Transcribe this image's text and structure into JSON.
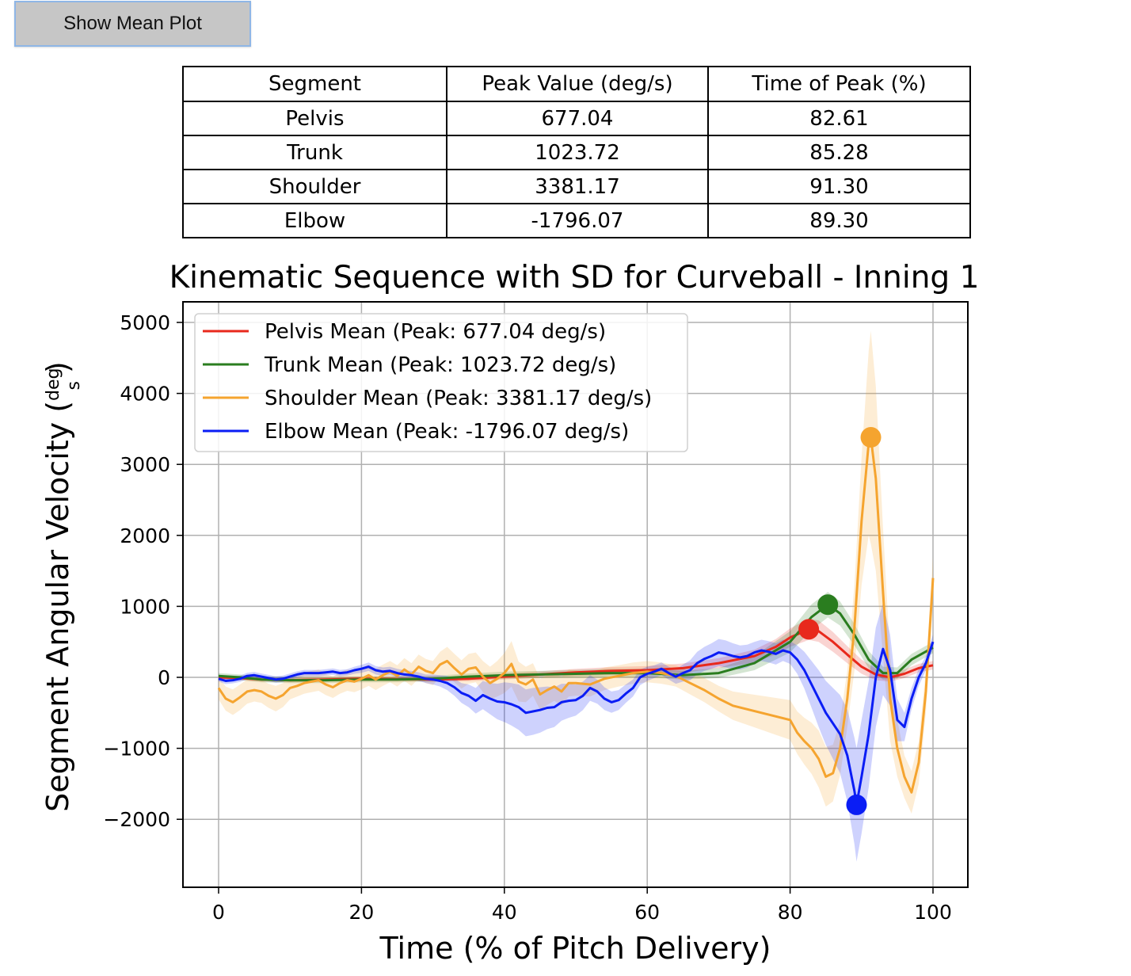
{
  "toolbar": {
    "show_mean_label": "Show Mean Plot"
  },
  "table": {
    "headers": [
      "Segment",
      "Peak Value (deg/s)",
      "Time of Peak (%)"
    ],
    "rows": [
      [
        "Pelvis",
        "677.04",
        "82.61"
      ],
      [
        "Trunk",
        "1023.72",
        "85.28"
      ],
      [
        "Shoulder",
        "3381.17",
        "91.30"
      ],
      [
        "Elbow",
        "-1796.07",
        "89.30"
      ]
    ]
  },
  "chart_data": {
    "type": "line",
    "title": "Kinematic Sequence with SD for Curveball - Inning 1",
    "xlabel": "Time (% of Pitch Delivery)",
    "ylabel": "Segment Angular Velocity (",
    "ylabel_unit_num": "deg",
    "ylabel_unit_den": "s",
    "xlim": [
      -5,
      105
    ],
    "ylim": [
      -2900,
      5280
    ],
    "xticks": [
      0,
      20,
      40,
      60,
      80,
      100
    ],
    "yticks": [
      -2000,
      -1000,
      0,
      1000,
      2000,
      3000,
      4000,
      5000
    ],
    "ytick_labels": [
      "−2000",
      "−1000",
      "0",
      "1000",
      "2000",
      "3000",
      "4000",
      "5000"
    ],
    "grid": true,
    "legend_position": "upper-left",
    "series": [
      {
        "name": "Pelvis Mean (Peak: 677.04 deg/s)",
        "color": "#e8291c",
        "peak": [
          82.61,
          677.04
        ],
        "x": [
          0,
          3,
          6,
          10,
          15,
          20,
          25,
          30,
          35,
          40,
          45,
          50,
          55,
          60,
          65,
          70,
          75,
          78,
          80,
          82.61,
          84,
          86,
          88,
          90,
          92,
          94,
          96,
          98,
          100
        ],
        "y": [
          0,
          -10,
          -30,
          -40,
          -30,
          -20,
          -25,
          -30,
          -20,
          10,
          40,
          70,
          90,
          100,
          130,
          200,
          300,
          430,
          560,
          677,
          650,
          500,
          320,
          150,
          40,
          0,
          50,
          130,
          170
        ],
        "sd": [
          30,
          30,
          30,
          30,
          30,
          30,
          30,
          30,
          35,
          40,
          45,
          50,
          55,
          60,
          65,
          70,
          90,
          110,
          130,
          150,
          150,
          140,
          120,
          100,
          80,
          60,
          60,
          60,
          60
        ]
      },
      {
        "name": "Trunk Mean (Peak: 1023.72 deg/s)",
        "color": "#2a7d1f",
        "peak": [
          85.28,
          1023.72
        ],
        "x": [
          0,
          3,
          6,
          10,
          15,
          20,
          25,
          30,
          35,
          40,
          45,
          50,
          55,
          60,
          65,
          70,
          75,
          80,
          83,
          85.28,
          87,
          89,
          91,
          93,
          95,
          97,
          100
        ],
        "y": [
          20,
          0,
          -30,
          -40,
          -40,
          -30,
          -30,
          -20,
          10,
          30,
          40,
          50,
          60,
          60,
          30,
          60,
          200,
          500,
          850,
          1024,
          900,
          600,
          250,
          60,
          60,
          250,
          420
        ],
        "sd": [
          40,
          40,
          40,
          40,
          40,
          40,
          40,
          40,
          45,
          50,
          50,
          55,
          60,
          60,
          60,
          70,
          100,
          150,
          180,
          180,
          170,
          150,
          120,
          90,
          80,
          80,
          80
        ]
      },
      {
        "name": "Shoulder Mean (Peak: 3381.17 deg/s)",
        "color": "#f5a42f",
        "peak": [
          91.3,
          3381.17
        ],
        "x": [
          0,
          1,
          2,
          3,
          4,
          5,
          6,
          7,
          8,
          9,
          10,
          11,
          12,
          13,
          14,
          15,
          16,
          17,
          18,
          19,
          20,
          21,
          22,
          23,
          24,
          25,
          26,
          27,
          28,
          29,
          30,
          31,
          32,
          33,
          34,
          35,
          36,
          37,
          38,
          39,
          40,
          41,
          42,
          43,
          44,
          45,
          46,
          47,
          48,
          49,
          50,
          52,
          54,
          56,
          58,
          60,
          62,
          64,
          66,
          68,
          70,
          72,
          74,
          76,
          78,
          80,
          81,
          82,
          83,
          84,
          85,
          86,
          87,
          88,
          89,
          90,
          91,
          91.3,
          92,
          93,
          94,
          95,
          96,
          97,
          98,
          99,
          100
        ],
        "y": [
          -150,
          -300,
          -350,
          -280,
          -200,
          -180,
          -200,
          -260,
          -300,
          -250,
          -150,
          -120,
          -80,
          -60,
          -40,
          -100,
          -140,
          -80,
          -40,
          -60,
          -20,
          30,
          -30,
          30,
          80,
          20,
          110,
          40,
          150,
          90,
          60,
          180,
          230,
          130,
          40,
          120,
          140,
          10,
          -80,
          -20,
          60,
          190,
          -60,
          -100,
          -30,
          -240,
          -180,
          -130,
          -200,
          -80,
          -80,
          -100,
          -20,
          20,
          60,
          80,
          60,
          20,
          -80,
          -180,
          -300,
          -400,
          -450,
          -500,
          -550,
          -600,
          -780,
          -900,
          -1000,
          -1150,
          -1400,
          -1350,
          -1000,
          -300,
          700,
          2200,
          3300,
          3381,
          2800,
          1200,
          -300,
          -1000,
          -1400,
          -1620,
          -1200,
          -200,
          1400
        ],
        "sd": [
          160,
          170,
          180,
          180,
          170,
          160,
          160,
          170,
          180,
          170,
          160,
          150,
          150,
          150,
          150,
          150,
          150,
          150,
          150,
          150,
          150,
          150,
          150,
          150,
          150,
          150,
          160,
          160,
          170,
          170,
          170,
          180,
          200,
          200,
          200,
          210,
          210,
          220,
          230,
          250,
          280,
          320,
          280,
          250,
          230,
          220,
          210,
          200,
          200,
          190,
          180,
          170,
          160,
          150,
          150,
          150,
          150,
          150,
          160,
          170,
          180,
          200,
          220,
          240,
          260,
          280,
          300,
          330,
          360,
          400,
          420,
          400,
          380,
          400,
          600,
          900,
          1300,
          1500,
          1300,
          900,
          600,
          400,
          300,
          300,
          300,
          300,
          300
        ]
      },
      {
        "name": "Elbow Mean (Peak: -1796.07 deg/s)",
        "color": "#0a1df5",
        "peak": [
          89.3,
          -1796.07
        ],
        "x": [
          0,
          1,
          2,
          3,
          4,
          5,
          6,
          7,
          8,
          9,
          10,
          11,
          12,
          13,
          14,
          15,
          16,
          17,
          18,
          19,
          20,
          21,
          22,
          23,
          24,
          25,
          26,
          27,
          28,
          29,
          30,
          31,
          32,
          33,
          34,
          35,
          36,
          37,
          38,
          39,
          40,
          41,
          42,
          43,
          44,
          45,
          46,
          47,
          48,
          49,
          50,
          51,
          52,
          53,
          54,
          55,
          56,
          57,
          58,
          59,
          60,
          61,
          62,
          63,
          64,
          65,
          66,
          67,
          68,
          69,
          70,
          71,
          72,
          73,
          74,
          75,
          76,
          77,
          78,
          79,
          80,
          81,
          82,
          83,
          84,
          85,
          86,
          87,
          88,
          89,
          89.3,
          90,
          91,
          92,
          93,
          94,
          95,
          96,
          97,
          98,
          99,
          100
        ],
        "y": [
          -20,
          -50,
          -40,
          -20,
          20,
          30,
          10,
          -10,
          -30,
          -20,
          10,
          40,
          60,
          60,
          60,
          70,
          80,
          60,
          70,
          100,
          120,
          150,
          100,
          80,
          90,
          60,
          40,
          30,
          10,
          -20,
          -30,
          -50,
          -80,
          -140,
          -220,
          -260,
          -330,
          -250,
          -300,
          -340,
          -350,
          -380,
          -420,
          -500,
          -480,
          -460,
          -430,
          -420,
          -350,
          -330,
          -320,
          -260,
          -150,
          -200,
          -300,
          -350,
          -320,
          -230,
          -150,
          0,
          50,
          80,
          120,
          60,
          10,
          60,
          100,
          200,
          260,
          300,
          350,
          330,
          300,
          280,
          300,
          350,
          380,
          360,
          330,
          380,
          350,
          250,
          100,
          -100,
          -300,
          -500,
          -650,
          -800,
          -1100,
          -1600,
          -1796,
          -1400,
          -800,
          0,
          400,
          100,
          -600,
          -700,
          -300,
          0,
          200,
          500
        ],
        "sd": [
          40,
          45,
          45,
          45,
          45,
          45,
          45,
          45,
          45,
          45,
          45,
          45,
          45,
          45,
          45,
          45,
          45,
          45,
          45,
          50,
          55,
          60,
          60,
          60,
          60,
          60,
          60,
          60,
          60,
          60,
          70,
          80,
          100,
          120,
          140,
          160,
          180,
          200,
          220,
          250,
          280,
          300,
          320,
          330,
          330,
          320,
          300,
          280,
          260,
          240,
          220,
          200,
          180,
          170,
          160,
          150,
          140,
          130,
          120,
          110,
          100,
          90,
          90,
          90,
          100,
          120,
          140,
          160,
          170,
          180,
          190,
          190,
          180,
          170,
          160,
          150,
          150,
          150,
          150,
          150,
          160,
          200,
          260,
          330,
          400,
          450,
          500,
          550,
          650,
          750,
          800,
          800,
          750,
          700,
          650,
          500,
          300,
          200,
          150,
          120,
          100,
          100
        ]
      }
    ]
  }
}
